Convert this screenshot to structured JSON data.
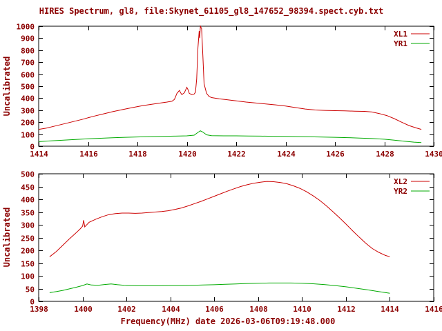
{
  "figure": {
    "title": "HIRES Spectrum, gl8, file:Skynet_61105_gl8_147652_98394.spect.cyb.txt",
    "xlabel": "Frequency(MHz) date 2026-03-06T09:19:48.000",
    "text_color": "#8b0000",
    "background": "#ffffff",
    "border_color": "#000000"
  },
  "chart_data": [
    {
      "type": "line",
      "ylabel": "Uncalibrated",
      "xlim": [
        1414,
        1430
      ],
      "ylim": [
        0,
        1000
      ],
      "xtick_step": 2,
      "ytick_step": 100,
      "grid": false,
      "legend_position": "top-right",
      "series": [
        {
          "name": "XL1",
          "color": "#cc0000",
          "points": [
            [
              1414.0,
              140
            ],
            [
              1414.3,
              150
            ],
            [
              1414.6,
              165
            ],
            [
              1415.0,
              185
            ],
            [
              1415.4,
              205
            ],
            [
              1415.8,
              225
            ],
            [
              1416.2,
              248
            ],
            [
              1416.6,
              268
            ],
            [
              1417.0,
              288
            ],
            [
              1417.4,
              305
            ],
            [
              1417.8,
              322
            ],
            [
              1418.2,
              338
            ],
            [
              1418.6,
              350
            ],
            [
              1419.0,
              362
            ],
            [
              1419.2,
              368
            ],
            [
              1419.4,
              375
            ],
            [
              1419.5,
              390
            ],
            [
              1419.6,
              440
            ],
            [
              1419.7,
              465
            ],
            [
              1419.75,
              445
            ],
            [
              1419.8,
              430
            ],
            [
              1419.9,
              445
            ],
            [
              1420.0,
              490
            ],
            [
              1420.05,
              470
            ],
            [
              1420.1,
              440
            ],
            [
              1420.2,
              430
            ],
            [
              1420.3,
              435
            ],
            [
              1420.35,
              450
            ],
            [
              1420.4,
              560
            ],
            [
              1420.45,
              820
            ],
            [
              1420.5,
              960
            ],
            [
              1420.52,
              900
            ],
            [
              1420.55,
              1000
            ],
            [
              1420.6,
              980
            ],
            [
              1420.65,
              760
            ],
            [
              1420.7,
              520
            ],
            [
              1420.8,
              440
            ],
            [
              1420.9,
              415
            ],
            [
              1421.0,
              405
            ],
            [
              1421.3,
              395
            ],
            [
              1421.6,
              388
            ],
            [
              1422.0,
              378
            ],
            [
              1422.4,
              368
            ],
            [
              1422.8,
              360
            ],
            [
              1423.2,
              352
            ],
            [
              1423.6,
              344
            ],
            [
              1424.0,
              335
            ],
            [
              1424.4,
              322
            ],
            [
              1424.8,
              310
            ],
            [
              1425.2,
              302
            ],
            [
              1425.6,
              298
            ],
            [
              1426.0,
              296
            ],
            [
              1426.4,
              294
            ],
            [
              1426.8,
              292
            ],
            [
              1427.2,
              290
            ],
            [
              1427.5,
              285
            ],
            [
              1427.8,
              272
            ],
            [
              1428.1,
              255
            ],
            [
              1428.4,
              230
            ],
            [
              1428.7,
              200
            ],
            [
              1429.0,
              172
            ],
            [
              1429.3,
              152
            ],
            [
              1429.5,
              140
            ]
          ]
        },
        {
          "name": "YR1",
          "color": "#00aa00",
          "points": [
            [
              1414.0,
              38
            ],
            [
              1414.5,
              44
            ],
            [
              1415.0,
              50
            ],
            [
              1415.5,
              56
            ],
            [
              1416.0,
              62
            ],
            [
              1416.5,
              66
            ],
            [
              1417.0,
              70
            ],
            [
              1417.5,
              74
            ],
            [
              1418.0,
              77
            ],
            [
              1418.5,
              80
            ],
            [
              1419.0,
              82
            ],
            [
              1419.5,
              84
            ],
            [
              1420.0,
              86
            ],
            [
              1420.3,
              92
            ],
            [
              1420.45,
              115
            ],
            [
              1420.55,
              128
            ],
            [
              1420.65,
              118
            ],
            [
              1420.8,
              95
            ],
            [
              1421.0,
              88
            ],
            [
              1421.5,
              86
            ],
            [
              1422.0,
              86
            ],
            [
              1422.5,
              85
            ],
            [
              1423.0,
              84
            ],
            [
              1423.5,
              83
            ],
            [
              1424.0,
              82
            ],
            [
              1424.5,
              80
            ],
            [
              1425.0,
              78
            ],
            [
              1425.5,
              76
            ],
            [
              1426.0,
              74
            ],
            [
              1426.5,
              71
            ],
            [
              1427.0,
              68
            ],
            [
              1427.5,
              64
            ],
            [
              1428.0,
              58
            ],
            [
              1428.4,
              50
            ],
            [
              1428.8,
              42
            ],
            [
              1429.2,
              34
            ],
            [
              1429.5,
              30
            ]
          ]
        }
      ]
    },
    {
      "type": "line",
      "ylabel": "Uncalibrated",
      "xlim": [
        1398,
        1416
      ],
      "ylim": [
        0,
        500
      ],
      "xtick_step": 2,
      "ytick_step": 50,
      "grid": false,
      "legend_position": "top-right",
      "series": [
        {
          "name": "XL2",
          "color": "#cc0000",
          "points": [
            [
              1398.5,
              175
            ],
            [
              1398.8,
              195
            ],
            [
              1399.1,
              220
            ],
            [
              1399.4,
              245
            ],
            [
              1399.7,
              268
            ],
            [
              1399.9,
              285
            ],
            [
              1400.0,
              295
            ],
            [
              1400.05,
              318
            ],
            [
              1400.1,
              292
            ],
            [
              1400.3,
              310
            ],
            [
              1400.6,
              322
            ],
            [
              1400.9,
              332
            ],
            [
              1401.2,
              340
            ],
            [
              1401.5,
              344
            ],
            [
              1401.8,
              346
            ],
            [
              1402.1,
              346
            ],
            [
              1402.4,
              345
            ],
            [
              1402.7,
              346
            ],
            [
              1403.0,
              348
            ],
            [
              1403.3,
              350
            ],
            [
              1403.6,
              352
            ],
            [
              1403.9,
              355
            ],
            [
              1404.2,
              360
            ],
            [
              1404.5,
              366
            ],
            [
              1404.8,
              374
            ],
            [
              1405.1,
              383
            ],
            [
              1405.4,
              392
            ],
            [
              1405.7,
              402
            ],
            [
              1406.0,
              412
            ],
            [
              1406.3,
              422
            ],
            [
              1406.6,
              432
            ],
            [
              1406.9,
              441
            ],
            [
              1407.2,
              450
            ],
            [
              1407.5,
              457
            ],
            [
              1407.8,
              463
            ],
            [
              1408.1,
              467
            ],
            [
              1408.4,
              470
            ],
            [
              1408.7,
              469
            ],
            [
              1409.0,
              466
            ],
            [
              1409.3,
              461
            ],
            [
              1409.6,
              453
            ],
            [
              1409.9,
              443
            ],
            [
              1410.2,
              430
            ],
            [
              1410.5,
              414
            ],
            [
              1410.8,
              396
            ],
            [
              1411.1,
              375
            ],
            [
              1411.4,
              352
            ],
            [
              1411.7,
              328
            ],
            [
              1412.0,
              303
            ],
            [
              1412.3,
              277
            ],
            [
              1412.6,
              252
            ],
            [
              1412.9,
              228
            ],
            [
              1413.2,
              207
            ],
            [
              1413.5,
              192
            ],
            [
              1413.8,
              180
            ],
            [
              1414.0,
              175
            ]
          ]
        },
        {
          "name": "YR2",
          "color": "#00aa00",
          "points": [
            [
              1398.5,
              34
            ],
            [
              1398.8,
              38
            ],
            [
              1399.1,
              43
            ],
            [
              1399.4,
              49
            ],
            [
              1399.7,
              55
            ],
            [
              1400.0,
              62
            ],
            [
              1400.2,
              68
            ],
            [
              1400.4,
              64
            ],
            [
              1400.7,
              63
            ],
            [
              1401.0,
              66
            ],
            [
              1401.3,
              68
            ],
            [
              1401.6,
              65
            ],
            [
              1401.9,
              63
            ],
            [
              1402.2,
              62
            ],
            [
              1402.5,
              61
            ],
            [
              1403.0,
              61
            ],
            [
              1403.5,
              61
            ],
            [
              1404.0,
              62
            ],
            [
              1404.5,
              62
            ],
            [
              1405.0,
              63
            ],
            [
              1405.5,
              64
            ],
            [
              1406.0,
              65
            ],
            [
              1406.5,
              67
            ],
            [
              1407.0,
              68
            ],
            [
              1407.5,
              70
            ],
            [
              1408.0,
              71
            ],
            [
              1408.5,
              72
            ],
            [
              1409.0,
              72
            ],
            [
              1409.5,
              72
            ],
            [
              1410.0,
              71
            ],
            [
              1410.5,
              69
            ],
            [
              1411.0,
              66
            ],
            [
              1411.5,
              62
            ],
            [
              1412.0,
              57
            ],
            [
              1412.5,
              51
            ],
            [
              1413.0,
              45
            ],
            [
              1413.5,
              38
            ],
            [
              1414.0,
              32
            ]
          ]
        }
      ]
    }
  ]
}
